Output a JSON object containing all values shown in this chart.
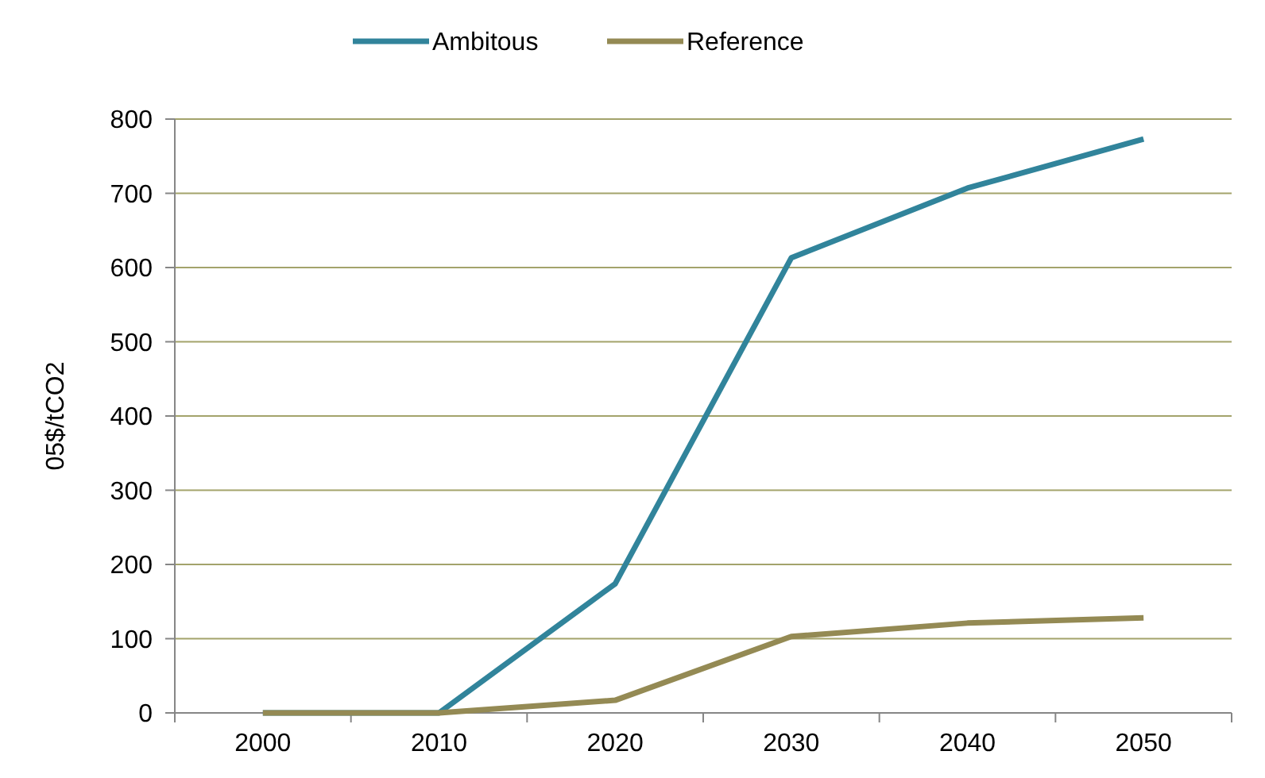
{
  "chart_data": {
    "type": "line",
    "ylabel": "05$/tCO2",
    "categories": [
      "2000",
      "2010",
      "2020",
      "2030",
      "2040",
      "2050"
    ],
    "series": [
      {
        "name": "Ambitous",
        "color": "#31849b",
        "values": [
          0,
          0,
          174,
          613,
          707,
          773
        ]
      },
      {
        "name": "Reference",
        "color": "#948a54",
        "values": [
          0,
          0,
          17,
          103,
          121,
          128
        ]
      }
    ],
    "ylim": [
      0,
      800
    ],
    "yticks": [
      0,
      100,
      200,
      300,
      400,
      500,
      600,
      700,
      800
    ],
    "grid": "y",
    "legend": "top",
    "marker": "none",
    "line_style": "solid"
  }
}
